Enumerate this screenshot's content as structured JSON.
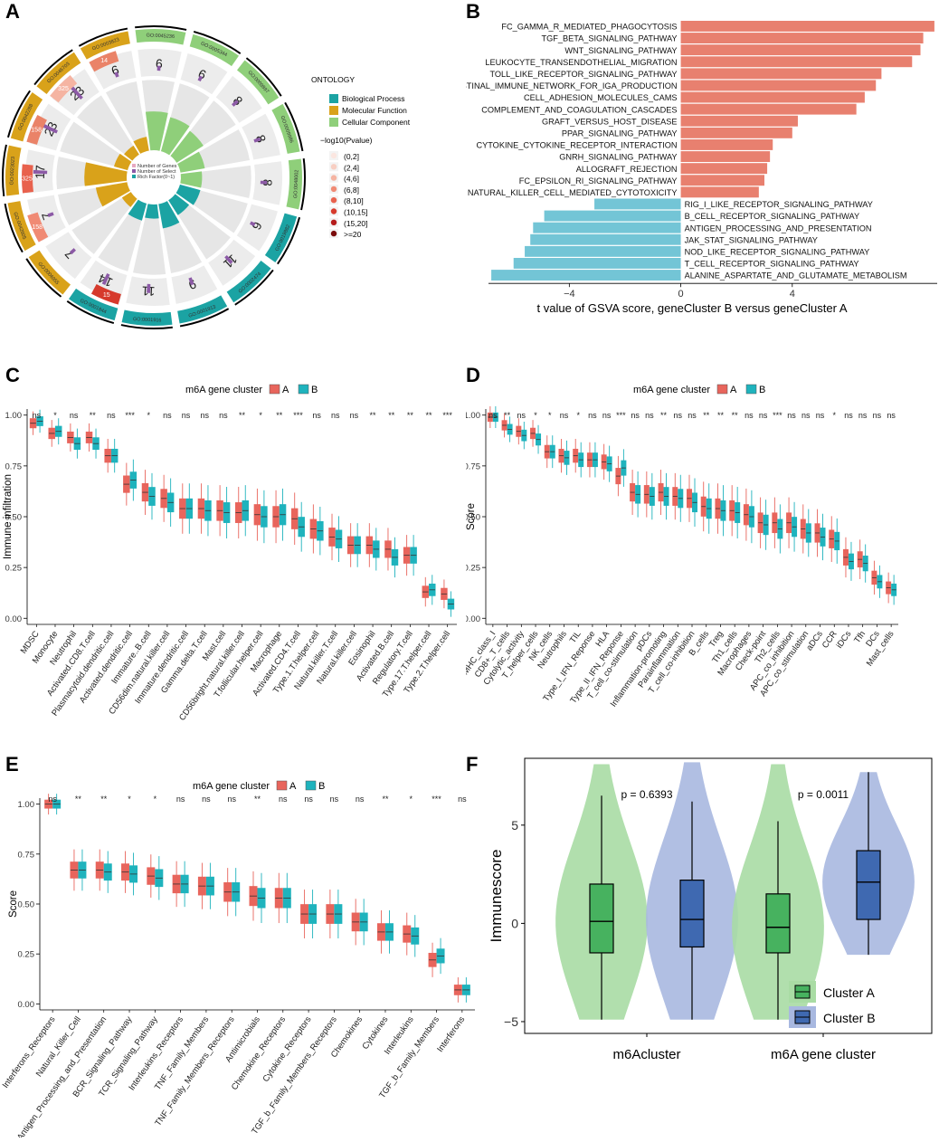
{
  "panel_letters": [
    "A",
    "B",
    "C",
    "D",
    "E",
    "F"
  ],
  "chart_data": [
    {
      "panel": "A",
      "type": "circos",
      "legend": {
        "ontology_title": "ONTOLOGY",
        "ontology_items": [
          {
            "label": "Biological Process",
            "color": "#1ba3a3"
          },
          {
            "label": "Molecular Function",
            "color": "#d9a21a"
          },
          {
            "label": "Cellular Component",
            "color": "#8fcf7a"
          }
        ],
        "pvalue_title": "−log10(Pvalue)",
        "pvalue_items": [
          {
            "label": "(0,2]",
            "color": "#fbe6e0"
          },
          {
            "label": "(2,4]",
            "color": "#f8cfc3"
          },
          {
            "label": "(4,6]",
            "color": "#f5b4a2"
          },
          {
            "label": "(6,8]",
            "color": "#f08a74"
          },
          {
            "label": "(8,10]",
            "color": "#e8614d"
          },
          {
            "label": "(10,15]",
            "color": "#d63a2c"
          },
          {
            "label": "(15,20]",
            "color": "#b51c1c"
          },
          {
            "label": ">=20",
            "color": "#7a0b0b"
          }
        ],
        "inner_items": [
          "Number of Genes",
          "Number of Select",
          "Rich Factor(0~1)"
        ]
      },
      "sectors": [
        {
          "id": "GO:0045236",
          "ontology": "Cellular Component",
          "genes": 6,
          "rich": 0.55
        },
        {
          "id": "GO:0005344",
          "ontology": "Cellular Component",
          "genes": 6,
          "rich": 0.5
        },
        {
          "id": "GO:0009897",
          "ontology": "Cellular Component",
          "genes": 8,
          "rich": 0.45
        },
        {
          "id": "GO:0009986",
          "ontology": "Cellular Component",
          "genes": 8,
          "rich": 0.35
        },
        {
          "id": "GO:0048002",
          "ontology": "Cellular Component",
          "genes": 8,
          "rich": 0.3
        },
        {
          "id": "GO:0019882",
          "ontology": "Biological Process",
          "genes": 6,
          "rich": 0.3
        },
        {
          "id": "GO:0002474",
          "ontology": "Biological Process",
          "genes": 11,
          "rich": 0.25
        },
        {
          "id": "GO:0001913",
          "ontology": "Biological Process",
          "genes": 9,
          "rich": 0.35
        },
        {
          "id": "GO:0001916",
          "ontology": "Biological Process",
          "genes": 11,
          "rich": 0.2
        },
        {
          "id": "GO:0001844",
          "ontology": "Biological Process",
          "genes": 14,
          "rich": 0.25
        },
        {
          "id": "GO:0006955",
          "ontology": "Molecular Function",
          "genes": 7,
          "rich": 0.15
        },
        {
          "id": "GO:0042605",
          "ontology": "Molecular Function",
          "genes": 7,
          "rich": 0.45
        },
        {
          "id": "GO:0023023",
          "ontology": "Molecular Function",
          "genes": 17,
          "rich": 0.6
        },
        {
          "id": "GO:0042288",
          "ontology": "Molecular Function",
          "genes": 23,
          "rich": 0.2
        },
        {
          "id": "GO:0046703",
          "ontology": "Molecular Function",
          "genes": 23,
          "rich": 0.15
        },
        {
          "id": "GO:0003823",
          "ontology": "Molecular Function",
          "genes": 6,
          "rich": 0.2
        }
      ],
      "bar_labels": [
        "158",
        "325",
        "325",
        "158",
        "14",
        "15"
      ]
    },
    {
      "panel": "B",
      "type": "bar",
      "orientation": "horizontal",
      "xlabel": "t value of GSVA score, geneCluster B versus geneCluster A",
      "xlim": [
        -6.9,
        9.2
      ],
      "ticks": [
        -4,
        0,
        4
      ],
      "tick_labels": [
        "−4",
        "0",
        "4"
      ],
      "pos_color": "#e8806f",
      "neg_color": "#73c5d6",
      "categories": [
        "FC_GAMMA_R_MEDIATED_PHAGOCYTOSIS",
        "TGF_BETA_SIGNALING_PATHWAY",
        "WNT_SIGNALING_PATHWAY",
        "LEUKOCYTE_TRANSENDOTHELIAL_MIGRATION",
        "TOLL_LIKE_RECEPTOR_SIGNALING_PATHWAY",
        "INTESTINAL_IMMUNE_NETWORK_FOR_IGA_PRODUCTION",
        "CELL_ADHESION_MOLECULES_CAMS",
        "COMPLEMENT_AND_COAGULATION_CASCADES",
        "GRAFT_VERSUS_HOST_DISEASE",
        "PPAR_SIGNALING_PATHWAY",
        "CYTOKINE_CYTOKINE_RECEPTOR_INTERACTION",
        "GNRH_SIGNALING_PATHWAY",
        "ALLOGRAFT_REJECTION",
        "FC_EPSILON_RI_SIGNALING_PATHWAY",
        "NATURAL_KILLER_CELL_MEDIATED_CYTOTOXICITY",
        "RIG_I_LIKE_RECEPTOR_SIGNALING_PATHWAY",
        "B_CELL_RECEPTOR_SIGNALING_PATHWAY",
        "ANTIGEN_PROCESSING_AND_PRESENTATION",
        "JAK_STAT_SIGNALING_PATHWAY",
        "NOD_LIKE_RECEPTOR_SIGNALING_PATHWAY",
        "T_CELL_RECEPTOR_SIGNALING_PATHWAY",
        "ALANINE_ASPARTATE_AND_GLUTAMATE_METABOLISM"
      ],
      "values": [
        9.1,
        8.7,
        8.6,
        8.3,
        7.2,
        7.0,
        6.6,
        6.3,
        4.2,
        4.0,
        3.3,
        3.2,
        3.1,
        3.0,
        2.8,
        -3.1,
        -4.9,
        -5.3,
        -5.4,
        -5.6,
        -6.0,
        -6.8
      ]
    },
    {
      "panel": "C",
      "type": "boxplot",
      "legend_title": "m6A gene cluster",
      "legend_labels": [
        "A",
        "B"
      ],
      "colors": [
        "#e8655c",
        "#1fb3bd"
      ],
      "ylabel": "Immune infiltration",
      "ylim": [
        -0.03,
        1.03
      ],
      "yticks": [
        0.0,
        0.25,
        0.5,
        0.75,
        1.0
      ],
      "ytick_labels": [
        "0.00",
        "0.25",
        "0.50",
        "0.75",
        "1.00"
      ],
      "categories": [
        "MDSC",
        "Monocyte",
        "Neutrophil",
        "Activated.CD8.T.cell",
        "Plasmacytoid.dendritic.cell",
        "Activated.dendritic.cell",
        "Immature..B.cell",
        "CD56dim.natural.killer.cell",
        "Immature.dendritic.cell",
        "Gamma.delta.T.cell",
        "Mast.cell",
        "CD56bright.natural.killer.cell",
        "T.follicular.helper.cell",
        "Macrophage",
        "Activated.CD4.T.cell",
        "Type.1.T.helper.cell",
        "Natural.killer.T.cell",
        "Natural.killer.cell",
        "Eosinophil",
        "Activated.B.cell",
        "Regulatory.T.cell",
        "Type.17.T.helper.cell",
        "Type.2.T.helper.cell"
      ],
      "significance": [
        "ns",
        "*",
        "ns",
        "**",
        "ns",
        "***",
        "*",
        "ns",
        "ns",
        "ns",
        "ns",
        "**",
        "*",
        "**",
        "***",
        "ns",
        "ns",
        "ns",
        "**",
        "**",
        "**",
        "**",
        "***"
      ],
      "medians_A": [
        0.96,
        0.91,
        0.89,
        0.89,
        0.8,
        0.66,
        0.62,
        0.59,
        0.54,
        0.54,
        0.53,
        0.52,
        0.51,
        0.5,
        0.49,
        0.44,
        0.4,
        0.36,
        0.36,
        0.34,
        0.31,
        0.13,
        0.12
      ],
      "medians_B": [
        0.97,
        0.92,
        0.86,
        0.86,
        0.8,
        0.68,
        0.6,
        0.57,
        0.54,
        0.53,
        0.52,
        0.53,
        0.5,
        0.51,
        0.45,
        0.43,
        0.39,
        0.36,
        0.34,
        0.3,
        0.31,
        0.14,
        0.07
      ]
    },
    {
      "panel": "D",
      "type": "boxplot",
      "legend_title": "m6A gene cluster",
      "legend_labels": [
        "A",
        "B"
      ],
      "colors": [
        "#e8655c",
        "#1fb3bd"
      ],
      "ylabel": "Score",
      "ylim": [
        -0.03,
        1.03
      ],
      "yticks": [
        0.0,
        0.25,
        0.5,
        0.75,
        1.0
      ],
      "ytick_labels": [
        "0.00",
        "0.25",
        "0.50",
        "0.75",
        "1.00"
      ],
      "categories": [
        "MHC_class_I",
        "CD8+_T_cells",
        "Cytolytic_activity",
        "T_helper_cells",
        "NK_cells",
        "Neutrophils",
        "TIL",
        "Type_I_IFN_Reponse",
        "HLA",
        "Type_II_IFN_Reponse",
        "T_cell_co-stimulation",
        "pDCs",
        "Inflammation-promoting",
        "Parainflammation",
        "T_cell_co-inhibition",
        "B_cells",
        "Treg",
        "Th1_cells",
        "Macrophages",
        "Check-point",
        "Th2_cells",
        "APC_co_inhibition",
        "APC_co_stimulation",
        "aDCs",
        "CCR",
        "iDCs",
        "Tfh",
        "DCs",
        "Mast_cells"
      ],
      "significance": [
        "ns",
        "**",
        "ns",
        "*",
        "*",
        "ns",
        "*",
        "ns",
        "ns",
        "***",
        "ns",
        "ns",
        "**",
        "ns",
        "ns",
        "**",
        "**",
        "**",
        "ns",
        "ns",
        "***",
        "ns",
        "ns",
        "ns",
        "*",
        "ns",
        "ns",
        "ns",
        "ns"
      ],
      "medians_A": [
        0.99,
        0.95,
        0.92,
        0.91,
        0.82,
        0.8,
        0.8,
        0.78,
        0.77,
        0.7,
        0.62,
        0.61,
        0.62,
        0.6,
        0.59,
        0.55,
        0.54,
        0.53,
        0.51,
        0.47,
        0.47,
        0.47,
        0.44,
        0.42,
        0.39,
        0.3,
        0.29,
        0.2,
        0.15
      ],
      "medians_B": [
        0.99,
        0.93,
        0.9,
        0.88,
        0.82,
        0.79,
        0.78,
        0.78,
        0.76,
        0.74,
        0.61,
        0.6,
        0.6,
        0.59,
        0.57,
        0.54,
        0.53,
        0.52,
        0.5,
        0.46,
        0.44,
        0.45,
        0.42,
        0.4,
        0.38,
        0.28,
        0.27,
        0.18,
        0.14
      ]
    },
    {
      "panel": "E",
      "type": "boxplot",
      "legend_title": "m6A gene cluster",
      "legend_labels": [
        "A",
        "B"
      ],
      "colors": [
        "#e8655c",
        "#1fb3bd"
      ],
      "ylabel": "Score",
      "ylim": [
        -0.03,
        1.03
      ],
      "yticks": [
        0.0,
        0.25,
        0.5,
        0.75,
        1.0
      ],
      "ytick_labels": [
        "0.00",
        "0.25",
        "0.50",
        "0.75",
        "1.00"
      ],
      "categories": [
        "Interferons_Receptors",
        "Natural_Killer_Cell",
        "Antigen_Processing_and_Presentation",
        "BCR_Signaling_Pathway",
        "TCR_Signaling_Pathway",
        "Interleukins_Receptors",
        "TNF_Family_Members",
        "TNF_Family_Members_Receptors",
        "Antimicrobials",
        "Chemokine_Receptors",
        "Cytokine_Receptors",
        "TGF_b_Family_Members_Receptors",
        "Chemokines",
        "Cytokines",
        "Interleukins",
        "TGF_b_Family_Members",
        "Interferons"
      ],
      "significance": [
        "ns",
        "**",
        "**",
        "*",
        "*",
        "ns",
        "ns",
        "ns",
        "**",
        "ns",
        "ns",
        "ns",
        "ns",
        "**",
        "*",
        "***",
        "ns"
      ],
      "medians_A": [
        1.0,
        0.67,
        0.67,
        0.66,
        0.64,
        0.6,
        0.59,
        0.56,
        0.54,
        0.53,
        0.45,
        0.45,
        0.41,
        0.36,
        0.35,
        0.22,
        0.07
      ],
      "medians_B": [
        1.0,
        0.67,
        0.66,
        0.65,
        0.63,
        0.6,
        0.59,
        0.56,
        0.53,
        0.53,
        0.45,
        0.45,
        0.41,
        0.36,
        0.34,
        0.24,
        0.07
      ]
    },
    {
      "panel": "F",
      "type": "violin",
      "ylabel": "Immunescore",
      "ylim": [
        -5.6,
        8.4
      ],
      "yticks": [
        -5,
        0,
        5
      ],
      "ytick_labels": [
        "−5",
        "0",
        "5"
      ],
      "groups": [
        "m6Acluster",
        "m6A gene cluster"
      ],
      "pvalues": [
        "p = 0.6393",
        "p = 0.0011"
      ],
      "legend_labels": [
        "Cluster A",
        "Cluster B"
      ],
      "violin_colors": [
        "#a9dca4",
        "#a8b8e0"
      ],
      "box_colors": [
        "#47b25f",
        "#3f69b1"
      ],
      "boxes": [
        {
          "group": 0,
          "cluster": "A",
          "q1": -1.5,
          "median": 0.1,
          "q3": 2.0,
          "lo": -4.9,
          "hi": 6.5,
          "vmin": -4.9,
          "vmax": 8.1
        },
        {
          "group": 0,
          "cluster": "B",
          "q1": -1.2,
          "median": 0.2,
          "q3": 2.2,
          "lo": -4.9,
          "hi": 6.2,
          "vmin": -4.9,
          "vmax": 8.2
        },
        {
          "group": 1,
          "cluster": "A",
          "q1": -1.5,
          "median": -0.2,
          "q3": 1.5,
          "lo": -4.9,
          "hi": 5.2,
          "vmin": -4.9,
          "vmax": 8.1
        },
        {
          "group": 1,
          "cluster": "B",
          "q1": 0.2,
          "median": 2.1,
          "q3": 3.7,
          "lo": -1.6,
          "hi": 7.7,
          "vmin": -1.6,
          "vmax": 7.7
        }
      ]
    }
  ]
}
